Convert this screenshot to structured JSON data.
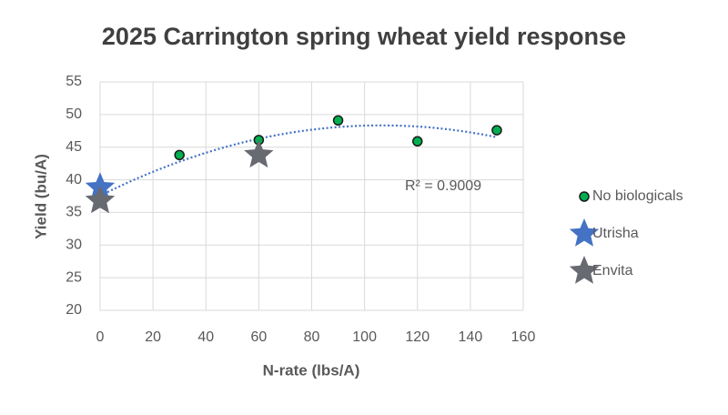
{
  "chart_data": {
    "type": "scatter",
    "title": "2025 Carrington spring wheat yield response",
    "x_label": "N-rate (lbs/A)",
    "y_label": "Yield (bu/A)",
    "xlim": [
      0,
      160
    ],
    "xticks": [
      0,
      20,
      40,
      60,
      80,
      100,
      120,
      140,
      160
    ],
    "ylim": [
      20,
      55
    ],
    "yticks": [
      20,
      25,
      30,
      35,
      40,
      45,
      50,
      55
    ],
    "grid": true,
    "legend": "right",
    "series": [
      {
        "name": "No biologicals",
        "color": "#00b050",
        "marker": "circle",
        "x": [
          0,
          30,
          60,
          90,
          120,
          150
        ],
        "values": [
          36.9,
          43.8,
          46.1,
          49.1,
          45.9,
          47.6
        ],
        "trendline": {
          "order": 2,
          "color": "#4472c4",
          "label": "R² = 0.9009"
        }
      },
      {
        "name": "Utrisha",
        "color": "#4472c4",
        "marker": "star",
        "x": [
          0
        ],
        "values": [
          38.8
        ]
      },
      {
        "name": "Envita",
        "color": "#676a70",
        "marker": "star",
        "x": [
          0,
          60
        ],
        "values": [
          36.8,
          43.8
        ]
      }
    ]
  }
}
